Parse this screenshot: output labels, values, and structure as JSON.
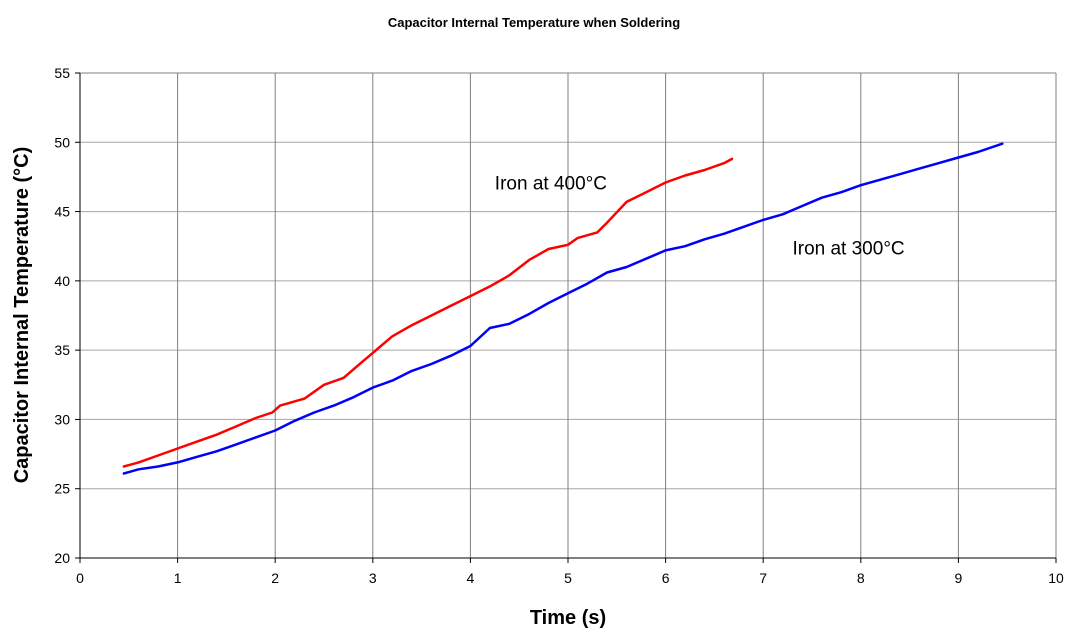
{
  "chart_data": {
    "type": "line",
    "title": "Capacitor Internal Temperature when Soldering",
    "xlabel": "Time (s)",
    "ylabel": "Capacitor Internal Temperature (°C)",
    "xlim": [
      0,
      10
    ],
    "ylim": [
      20,
      55
    ],
    "x_ticks": [
      "0",
      "1",
      "2",
      "3",
      "4",
      "5",
      "6",
      "7",
      "8",
      "9",
      "10"
    ],
    "y_ticks": [
      "20",
      "25",
      "30",
      "35",
      "40",
      "45",
      "50",
      "55"
    ],
    "grid": true,
    "legend": "none",
    "series": [
      {
        "color": "#ff0000",
        "x": [
          0.45,
          0.6,
          0.8,
          1.0,
          1.2,
          1.4,
          1.6,
          1.8,
          1.97,
          2.05,
          2.1,
          2.3,
          2.5,
          2.7,
          2.9,
          3.0,
          3.2,
          3.4,
          3.6,
          3.8,
          4.0,
          4.2,
          4.4,
          4.6,
          4.8,
          5.0,
          5.1,
          5.3,
          5.4,
          5.6,
          5.8,
          6.0,
          6.2,
          6.4,
          6.6,
          6.68
        ],
        "y": [
          26.6,
          26.9,
          27.4,
          27.9,
          28.4,
          28.9,
          29.5,
          30.1,
          30.5,
          31.0,
          31.1,
          31.5,
          32.5,
          33.0,
          34.2,
          34.8,
          36.0,
          36.8,
          37.5,
          38.2,
          38.9,
          39.6,
          40.4,
          41.5,
          42.3,
          42.6,
          43.1,
          43.5,
          44.2,
          45.7,
          46.4,
          47.1,
          47.6,
          48.0,
          48.5,
          48.8
        ]
      },
      {
        "color": "#0000ff",
        "x": [
          0.45,
          0.6,
          0.8,
          1.0,
          1.2,
          1.4,
          1.6,
          1.8,
          2.0,
          2.2,
          2.4,
          2.6,
          2.8,
          3.0,
          3.2,
          3.4,
          3.6,
          3.8,
          4.0,
          4.2,
          4.4,
          4.6,
          4.8,
          5.0,
          5.2,
          5.4,
          5.6,
          5.8,
          6.0,
          6.2,
          6.4,
          6.6,
          6.8,
          7.0,
          7.2,
          7.4,
          7.6,
          7.8,
          8.0,
          8.2,
          8.4,
          8.6,
          8.8,
          9.0,
          9.2,
          9.45
        ],
        "y": [
          26.1,
          26.4,
          26.6,
          26.9,
          27.3,
          27.7,
          28.2,
          28.7,
          29.2,
          29.9,
          30.5,
          31.0,
          31.6,
          32.3,
          32.8,
          33.5,
          34.0,
          34.6,
          35.3,
          36.6,
          36.9,
          37.6,
          38.4,
          39.1,
          39.8,
          40.6,
          41.0,
          41.6,
          42.2,
          42.5,
          43.0,
          43.4,
          43.9,
          44.4,
          44.8,
          45.4,
          46.0,
          46.4,
          46.9,
          47.3,
          47.7,
          48.1,
          48.5,
          48.9,
          49.3,
          49.9
        ]
      }
    ],
    "annotations": [
      {
        "text": "Iron at 400°C",
        "x": 4.25,
        "y": 46.6
      },
      {
        "text": "Iron at 300°C",
        "x": 7.3,
        "y": 41.9
      }
    ]
  }
}
